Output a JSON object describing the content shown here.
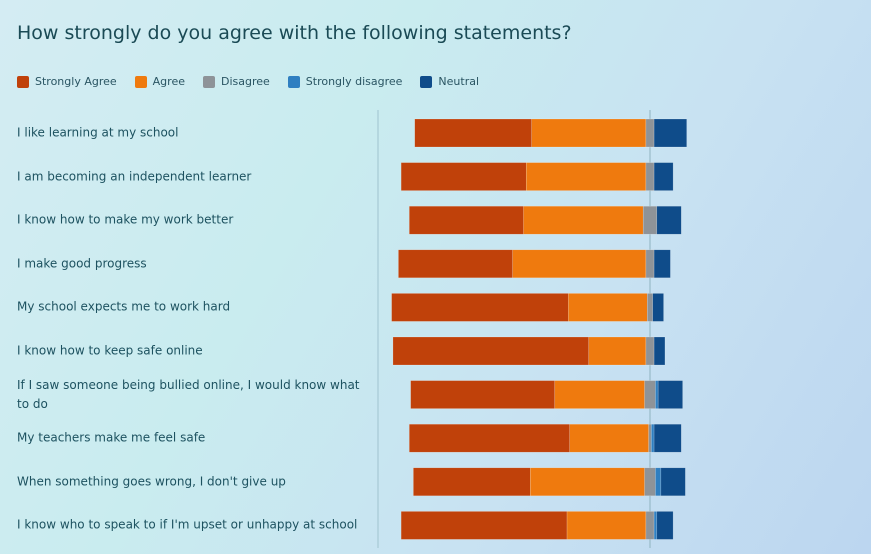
{
  "chart_data": {
    "type": "bar",
    "orientation": "horizontal",
    "stacked": true,
    "diverging": true,
    "title": "How strongly do you agree with the following statements?",
    "categories": [
      "I like learning at my school",
      "I am becoming an independent learner",
      "I know how to make my work better",
      "I make good progress",
      "My school expects me to work hard",
      "I know how to keep safe online",
      "If I saw someone being bullied online, I would know what to do",
      "My teachers make me feel safe",
      "When something goes wrong, I don't give up",
      "I know who to speak to if I'm upset or unhappy at school"
    ],
    "series": [
      {
        "name": "Strongly Agree",
        "color": "#c0410a",
        "values": [
          43,
          46,
          42,
          42,
          65,
          72,
          53,
          59,
          43,
          61
        ]
      },
      {
        "name": "Agree",
        "color": "#ef7a0e",
        "values": [
          42,
          44,
          44,
          49,
          29,
          21,
          33,
          29,
          42,
          29
        ]
      },
      {
        "name": "Disagree",
        "color": "#8e9398",
        "values": [
          3,
          3,
          5,
          3,
          2,
          3,
          4,
          1,
          4,
          3
        ]
      },
      {
        "name": "Strongly disagree",
        "color": "#2f7fc1",
        "values": [
          0,
          0,
          0,
          0,
          0,
          0,
          1,
          1,
          2,
          1
        ]
      },
      {
        "name": "Neutral",
        "color": "#0f4c8a",
        "values": [
          12,
          7,
          9,
          6,
          4,
          4,
          9,
          10,
          9,
          6
        ]
      }
    ],
    "legend": "top-left"
  }
}
